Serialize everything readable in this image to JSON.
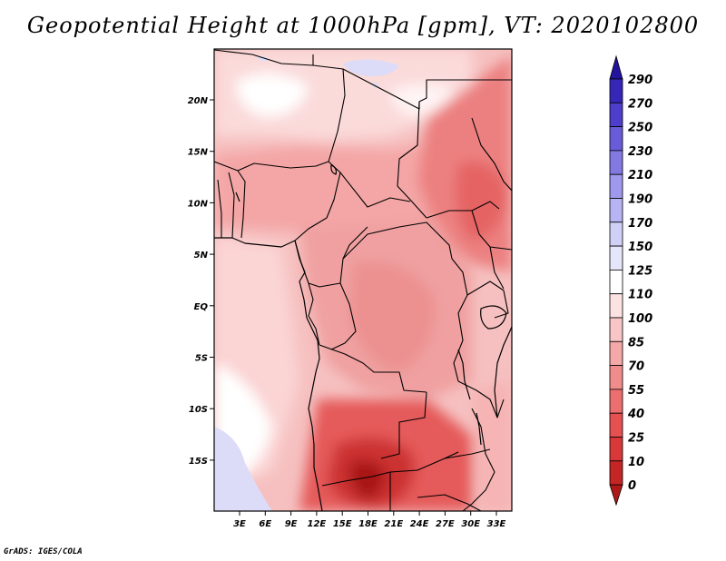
{
  "title": "Geopotential Height at 1000hPa [gpm], VT: 2020102800",
  "credit": "GrADS: IGES/COLA",
  "map": {
    "lat_ticks": [
      "20N",
      "15N",
      "10N",
      "5N",
      "EQ",
      "5S",
      "10S",
      "15S"
    ],
    "lon_ticks": [
      "3E",
      "6E",
      "9E",
      "12E",
      "15E",
      "18E",
      "21E",
      "24E",
      "27E",
      "30E",
      "33E"
    ]
  },
  "colorbar": {
    "levels": [
      "0",
      "10",
      "25",
      "40",
      "55",
      "70",
      "85",
      "100",
      "110",
      "125",
      "150",
      "170",
      "190",
      "210",
      "230",
      "250",
      "270",
      "290"
    ],
    "colors": [
      "#b01818",
      "#c42525",
      "#d83838",
      "#e55050",
      "#ec6e6e",
      "#f08c8c",
      "#f4a8a8",
      "#f8c6c6",
      "#fde2e2",
      "#ffffff",
      "#e6e6fa",
      "#d0d0f7",
      "#b8b4f3",
      "#9f98ec",
      "#8478e3",
      "#6a5cd8",
      "#4e3ecb",
      "#3727b8",
      "#23149e"
    ]
  }
}
